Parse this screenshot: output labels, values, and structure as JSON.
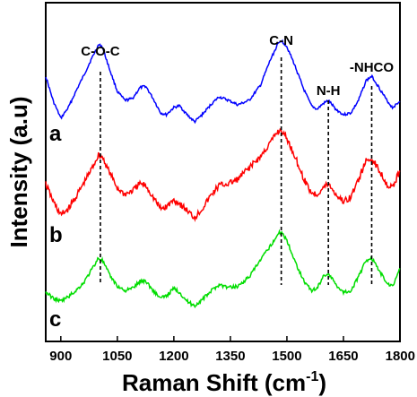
{
  "chart_data": {
    "type": "line",
    "xlabel": "Raman Shift (cm",
    "xlabel_sup": "-1",
    "xlabel_close": ")",
    "ylabel": "Intensity (a.u)",
    "xlim": [
      860,
      1800
    ],
    "x_ticks": [
      900,
      1050,
      1200,
      1350,
      1500,
      1650,
      1800
    ],
    "x_tick_labels": [
      "900",
      "1050",
      "1200",
      "1350",
      "1500",
      "1650",
      "1800"
    ],
    "y_ticks_shown": false,
    "grid": false,
    "peak_markers": [
      {
        "label": "C-O-C",
        "x": 1005
      },
      {
        "label": "C-N",
        "x": 1485
      },
      {
        "label": "N-H",
        "x": 1610
      },
      {
        "label": "-NHCO",
        "x": 1725
      }
    ],
    "series": [
      {
        "name": "a",
        "color": "#0000ff",
        "points": [
          [
            860,
            0.55
          ],
          [
            880,
            0.27
          ],
          [
            900,
            0.08
          ],
          [
            920,
            0.2
          ],
          [
            940,
            0.38
          ],
          [
            960,
            0.55
          ],
          [
            980,
            0.73
          ],
          [
            1000,
            0.9
          ],
          [
            1010,
            0.88
          ],
          [
            1030,
            0.62
          ],
          [
            1050,
            0.38
          ],
          [
            1070,
            0.28
          ],
          [
            1090,
            0.3
          ],
          [
            1110,
            0.42
          ],
          [
            1125,
            0.44
          ],
          [
            1145,
            0.3
          ],
          [
            1165,
            0.14
          ],
          [
            1180,
            0.12
          ],
          [
            1200,
            0.2
          ],
          [
            1215,
            0.22
          ],
          [
            1235,
            0.12
          ],
          [
            1255,
            0.04
          ],
          [
            1275,
            0.12
          ],
          [
            1300,
            0.24
          ],
          [
            1320,
            0.32
          ],
          [
            1345,
            0.28
          ],
          [
            1370,
            0.23
          ],
          [
            1400,
            0.28
          ],
          [
            1430,
            0.45
          ],
          [
            1455,
            0.72
          ],
          [
            1475,
            0.9
          ],
          [
            1485,
            0.95
          ],
          [
            1500,
            0.88
          ],
          [
            1520,
            0.68
          ],
          [
            1545,
            0.4
          ],
          [
            1565,
            0.22
          ],
          [
            1580,
            0.18
          ],
          [
            1595,
            0.24
          ],
          [
            1610,
            0.28
          ],
          [
            1630,
            0.18
          ],
          [
            1650,
            0.12
          ],
          [
            1670,
            0.14
          ],
          [
            1690,
            0.28
          ],
          [
            1710,
            0.5
          ],
          [
            1725,
            0.55
          ],
          [
            1745,
            0.42
          ],
          [
            1765,
            0.28
          ],
          [
            1780,
            0.2
          ],
          [
            1795,
            0.25
          ],
          [
            1800,
            0.28
          ]
        ]
      },
      {
        "name": "b",
        "color": "#ff0000",
        "points": [
          [
            860,
            0.4
          ],
          [
            880,
            0.2
          ],
          [
            900,
            0.05
          ],
          [
            920,
            0.12
          ],
          [
            940,
            0.25
          ],
          [
            960,
            0.4
          ],
          [
            980,
            0.55
          ],
          [
            1000,
            0.72
          ],
          [
            1010,
            0.7
          ],
          [
            1030,
            0.52
          ],
          [
            1050,
            0.35
          ],
          [
            1070,
            0.28
          ],
          [
            1090,
            0.32
          ],
          [
            1110,
            0.4
          ],
          [
            1125,
            0.38
          ],
          [
            1145,
            0.25
          ],
          [
            1165,
            0.12
          ],
          [
            1180,
            0.14
          ],
          [
            1200,
            0.22
          ],
          [
            1215,
            0.18
          ],
          [
            1235,
            0.1
          ],
          [
            1255,
            0.02
          ],
          [
            1275,
            0.12
          ],
          [
            1300,
            0.28
          ],
          [
            1320,
            0.38
          ],
          [
            1345,
            0.4
          ],
          [
            1370,
            0.45
          ],
          [
            1400,
            0.58
          ],
          [
            1430,
            0.7
          ],
          [
            1455,
            0.85
          ],
          [
            1475,
            0.98
          ],
          [
            1485,
            1.0
          ],
          [
            1500,
            0.9
          ],
          [
            1520,
            0.72
          ],
          [
            1545,
            0.45
          ],
          [
            1565,
            0.3
          ],
          [
            1580,
            0.28
          ],
          [
            1595,
            0.35
          ],
          [
            1610,
            0.4
          ],
          [
            1630,
            0.28
          ],
          [
            1650,
            0.2
          ],
          [
            1670,
            0.25
          ],
          [
            1690,
            0.45
          ],
          [
            1710,
            0.65
          ],
          [
            1725,
            0.68
          ],
          [
            1745,
            0.55
          ],
          [
            1765,
            0.4
          ],
          [
            1780,
            0.35
          ],
          [
            1795,
            0.5
          ],
          [
            1800,
            0.55
          ]
        ]
      },
      {
        "name": "c",
        "color": "#00dd00",
        "points": [
          [
            860,
            0.2
          ],
          [
            880,
            0.12
          ],
          [
            900,
            0.08
          ],
          [
            920,
            0.14
          ],
          [
            940,
            0.22
          ],
          [
            960,
            0.32
          ],
          [
            980,
            0.48
          ],
          [
            1000,
            0.65
          ],
          [
            1010,
            0.62
          ],
          [
            1030,
            0.42
          ],
          [
            1050,
            0.28
          ],
          [
            1070,
            0.22
          ],
          [
            1090,
            0.25
          ],
          [
            1110,
            0.34
          ],
          [
            1125,
            0.35
          ],
          [
            1145,
            0.22
          ],
          [
            1165,
            0.12
          ],
          [
            1180,
            0.15
          ],
          [
            1200,
            0.25
          ],
          [
            1215,
            0.2
          ],
          [
            1235,
            0.08
          ],
          [
            1255,
            0.02
          ],
          [
            1275,
            0.1
          ],
          [
            1300,
            0.22
          ],
          [
            1320,
            0.3
          ],
          [
            1345,
            0.26
          ],
          [
            1370,
            0.28
          ],
          [
            1400,
            0.4
          ],
          [
            1430,
            0.62
          ],
          [
            1455,
            0.8
          ],
          [
            1475,
            0.95
          ],
          [
            1485,
            1.0
          ],
          [
            1500,
            0.88
          ],
          [
            1520,
            0.62
          ],
          [
            1545,
            0.35
          ],
          [
            1565,
            0.22
          ],
          [
            1580,
            0.25
          ],
          [
            1595,
            0.4
          ],
          [
            1610,
            0.45
          ],
          [
            1630,
            0.3
          ],
          [
            1650,
            0.2
          ],
          [
            1670,
            0.22
          ],
          [
            1690,
            0.4
          ],
          [
            1710,
            0.62
          ],
          [
            1725,
            0.65
          ],
          [
            1745,
            0.48
          ],
          [
            1765,
            0.32
          ],
          [
            1780,
            0.28
          ],
          [
            1795,
            0.45
          ],
          [
            1800,
            0.5
          ]
        ]
      }
    ]
  }
}
